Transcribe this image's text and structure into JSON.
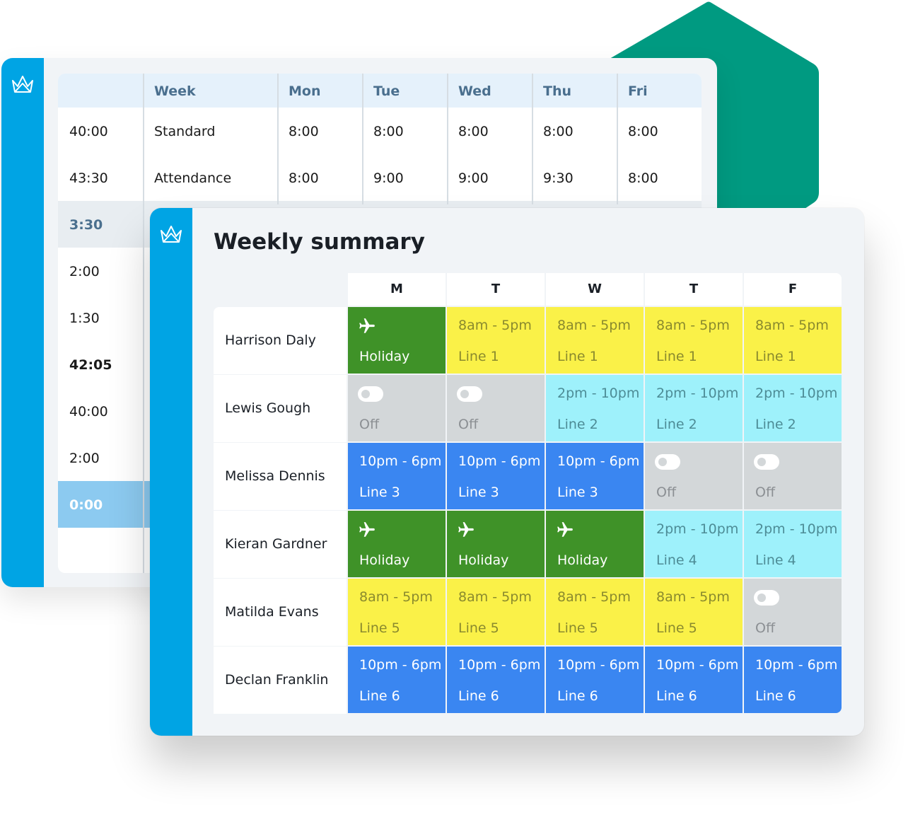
{
  "colors": {
    "sidebar": "#00a4e4",
    "hexagon": "#009a81",
    "holiday": "#3f9228",
    "day_shift": "#faf148",
    "late_shift": "#9ef1fb",
    "night_shift": "#3a86f1",
    "off": "#d3d7d9"
  },
  "back_table": {
    "headers": [
      "",
      "Week",
      "Mon",
      "Tue",
      "Wed",
      "Thu",
      "Fri"
    ],
    "rows": [
      [
        "40:00",
        "Standard",
        "8:00",
        "8:00",
        "8:00",
        "8:00",
        "8:00"
      ],
      [
        "43:30",
        "Attendance",
        "8:00",
        "9:00",
        "9:00",
        "9:30",
        "8:00"
      ],
      [
        "3:30"
      ],
      [
        "2:00"
      ],
      [
        "1:30"
      ],
      [
        "42:05"
      ],
      [
        "40:00"
      ],
      [
        "2:00"
      ],
      [
        "0:00"
      ]
    ]
  },
  "summary": {
    "title": "Weekly summary",
    "days": [
      "M",
      "T",
      "W",
      "T",
      "F"
    ],
    "rows": [
      {
        "name": "Harrison Daly",
        "cells": [
          {
            "type": "holiday",
            "icon": "airplane-icon",
            "label": "Holiday"
          },
          {
            "type": "day",
            "time": "8am - 5pm",
            "line": "Line 1"
          },
          {
            "type": "day",
            "time": "8am - 5pm",
            "line": "Line 1"
          },
          {
            "type": "day",
            "time": "8am - 5pm",
            "line": "Line 1"
          },
          {
            "type": "day",
            "time": "8am - 5pm",
            "line": "Line 1"
          }
        ]
      },
      {
        "name": "Lewis Gough",
        "cells": [
          {
            "type": "off",
            "icon": "toggle-icon",
            "label": "Off"
          },
          {
            "type": "off",
            "icon": "toggle-icon",
            "label": "Off"
          },
          {
            "type": "late",
            "time": "2pm - 10pm",
            "line": "Line 2"
          },
          {
            "type": "late",
            "time": "2pm - 10pm",
            "line": "Line 2"
          },
          {
            "type": "late",
            "time": "2pm - 10pm",
            "line": "Line 2"
          }
        ]
      },
      {
        "name": "Melissa Dennis",
        "cells": [
          {
            "type": "night",
            "time": "10pm - 6pm",
            "line": "Line 3"
          },
          {
            "type": "night",
            "time": "10pm - 6pm",
            "line": "Line 3"
          },
          {
            "type": "night",
            "time": "10pm - 6pm",
            "line": "Line 3"
          },
          {
            "type": "off",
            "icon": "toggle-icon",
            "label": "Off"
          },
          {
            "type": "off",
            "icon": "toggle-icon",
            "label": "Off"
          }
        ]
      },
      {
        "name": "Kieran Gardner",
        "cells": [
          {
            "type": "holiday",
            "icon": "airplane-icon",
            "label": "Holiday"
          },
          {
            "type": "holiday",
            "icon": "airplane-icon",
            "label": "Holiday"
          },
          {
            "type": "holiday",
            "icon": "airplane-icon",
            "label": "Holiday"
          },
          {
            "type": "late",
            "time": "2pm - 10pm",
            "line": "Line 4"
          },
          {
            "type": "late",
            "time": "2pm - 10pm",
            "line": "Line 4"
          }
        ]
      },
      {
        "name": "Matilda Evans",
        "cells": [
          {
            "type": "day",
            "time": "8am - 5pm",
            "line": "Line 5"
          },
          {
            "type": "day",
            "time": "8am - 5pm",
            "line": "Line 5"
          },
          {
            "type": "day",
            "time": "8am - 5pm",
            "line": "Line 5"
          },
          {
            "type": "day",
            "time": "8am - 5pm",
            "line": "Line 5"
          },
          {
            "type": "off",
            "icon": "toggle-icon",
            "label": "Off"
          }
        ]
      },
      {
        "name": "Declan Franklin",
        "cells": [
          {
            "type": "night",
            "time": "10pm - 6pm",
            "line": "Line 6"
          },
          {
            "type": "night",
            "time": "10pm - 6pm",
            "line": "Line 6"
          },
          {
            "type": "night",
            "time": "10pm - 6pm",
            "line": "Line 6"
          },
          {
            "type": "night",
            "time": "10pm - 6pm",
            "line": "Line 6"
          },
          {
            "type": "night",
            "time": "10pm - 6pm",
            "line": "Line 6"
          }
        ]
      }
    ]
  }
}
